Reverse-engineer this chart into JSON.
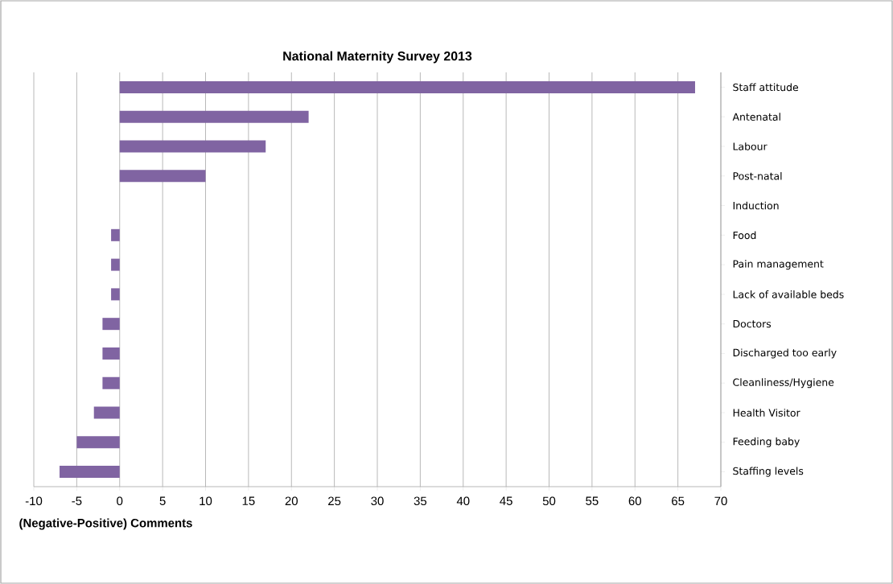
{
  "chart_data": {
    "type": "bar",
    "orientation": "horizontal",
    "title": "National Maternity Survey 2013",
    "xlabel": "(Negative-Positive) Comments",
    "categories": [
      "Staff attitude",
      "Antenatal",
      "Labour",
      "Post-natal",
      "Induction",
      "Food",
      "Pain management",
      "Lack of available beds",
      "Doctors",
      "Discharged too early",
      "Cleanliness/Hygiene",
      "Health Visitor",
      "Feeding baby",
      "Staffing levels"
    ],
    "values": [
      67,
      22,
      17,
      10,
      0,
      -1,
      -1,
      -1,
      -2,
      -2,
      -2,
      -3,
      -5,
      -7
    ],
    "color": "#8064a2",
    "xlim": [
      -10,
      70
    ],
    "xticks": [
      -10,
      -5,
      0,
      5,
      10,
      15,
      20,
      25,
      30,
      35,
      40,
      45,
      50,
      55,
      60,
      65,
      70
    ],
    "grid": "x"
  }
}
